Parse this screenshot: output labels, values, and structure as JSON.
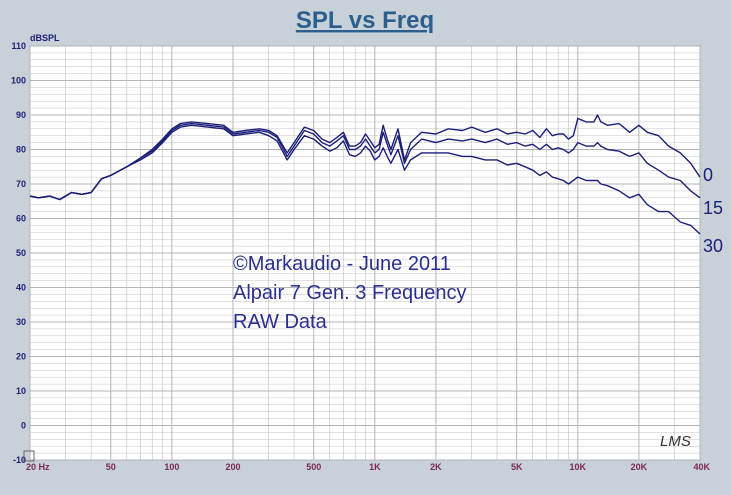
{
  "chart_data": {
    "type": "line",
    "title": "SPL vs Freq",
    "ylabel": "dBSPL",
    "xlabel": "",
    "x_scale": "log",
    "xlim": [
      20,
      40000
    ],
    "ylim": [
      -10,
      110
    ],
    "grid": true,
    "y_ticks": [
      "110",
      "100",
      "90",
      "80",
      "70",
      "60",
      "50",
      "40",
      "30",
      "20",
      "10",
      "0",
      "-10"
    ],
    "x_ticks": [
      {
        "value": 20,
        "label": "20 Hz"
      },
      {
        "value": 50,
        "label": "50"
      },
      {
        "value": 100,
        "label": "100"
      },
      {
        "value": 200,
        "label": "200"
      },
      {
        "value": 500,
        "label": "500"
      },
      {
        "value": 1000,
        "label": "1K"
      },
      {
        "value": 2000,
        "label": "2K"
      },
      {
        "value": 5000,
        "label": "5K"
      },
      {
        "value": 10000,
        "label": "10K"
      },
      {
        "value": 20000,
        "label": "20K"
      },
      {
        "value": 40000,
        "label": "40K"
      }
    ],
    "series": [
      {
        "name": "0",
        "x": [
          20,
          22,
          25,
          28,
          32,
          36,
          40,
          45,
          50,
          60,
          70,
          80,
          90,
          100,
          110,
          125,
          150,
          180,
          200,
          230,
          270,
          300,
          330,
          370,
          400,
          450,
          500,
          550,
          600,
          650,
          700,
          750,
          800,
          850,
          900,
          950,
          1000,
          1050,
          1100,
          1150,
          1200,
          1300,
          1400,
          1500,
          1700,
          2000,
          2300,
          2700,
          3000,
          3500,
          4000,
          4500,
          5000,
          5500,
          6000,
          6500,
          7000,
          7500,
          8000,
          8500,
          9000,
          9500,
          10000,
          11000,
          12000,
          12500,
          13000,
          14000,
          16000,
          18000,
          20000,
          22000,
          25000,
          28000,
          32000,
          36000,
          40000
        ],
        "y": [
          66.5,
          66,
          66.5,
          65.5,
          67.5,
          67,
          67.5,
          71.5,
          72.5,
          75,
          77.5,
          80,
          83,
          86,
          87.5,
          88,
          87.5,
          87,
          85,
          85.5,
          86,
          85.5,
          84,
          79,
          82,
          86.5,
          85.5,
          83,
          82,
          83.5,
          85,
          81,
          81,
          82,
          84.5,
          82.5,
          80.5,
          81.5,
          87,
          83,
          80,
          86,
          77,
          82,
          85,
          84.5,
          86,
          85.5,
          86.5,
          85,
          86,
          84.5,
          85,
          84.5,
          85.5,
          83.5,
          86,
          84,
          84.5,
          84.5,
          83,
          84,
          89,
          88,
          88,
          90,
          88,
          87,
          87.5,
          85,
          87,
          85,
          84,
          81,
          79,
          76,
          72
        ]
      },
      {
        "name": "15",
        "x": [
          20,
          22,
          25,
          28,
          32,
          36,
          40,
          45,
          50,
          60,
          70,
          80,
          90,
          100,
          110,
          125,
          150,
          180,
          200,
          230,
          270,
          300,
          330,
          370,
          400,
          450,
          500,
          550,
          600,
          650,
          700,
          750,
          800,
          850,
          900,
          950,
          1000,
          1050,
          1100,
          1150,
          1200,
          1300,
          1400,
          1500,
          1700,
          2000,
          2300,
          2700,
          3000,
          3500,
          4000,
          4500,
          5000,
          5500,
          6000,
          6500,
          7000,
          7500,
          8000,
          8500,
          9000,
          9500,
          10000,
          11000,
          12000,
          12500,
          13000,
          14000,
          16000,
          18000,
          20000,
          22000,
          25000,
          28000,
          32000,
          36000,
          40000
        ],
        "y": [
          66.5,
          66,
          66.5,
          65.5,
          67.5,
          67,
          67.5,
          71.5,
          72.5,
          75,
          77.5,
          79.5,
          82.5,
          85.5,
          87,
          87.5,
          87,
          86.5,
          84.5,
          85,
          85.5,
          85,
          83.5,
          78,
          81,
          85.5,
          84.5,
          82,
          81,
          82.5,
          84,
          80,
          80,
          81,
          83,
          81,
          79,
          80,
          85,
          81.5,
          78.5,
          84,
          76,
          80,
          83,
          82,
          83,
          82.5,
          83,
          82,
          83,
          81.5,
          82,
          81,
          81.5,
          80,
          81.5,
          80,
          80.5,
          80,
          79,
          80,
          82,
          81,
          81,
          82,
          81,
          80,
          79.5,
          78,
          79,
          76,
          74,
          72,
          71,
          68,
          66
        ]
      },
      {
        "name": "30",
        "x": [
          20,
          22,
          25,
          28,
          32,
          36,
          40,
          45,
          50,
          60,
          70,
          80,
          90,
          100,
          110,
          125,
          150,
          180,
          200,
          230,
          270,
          300,
          330,
          370,
          400,
          450,
          500,
          550,
          600,
          650,
          700,
          750,
          800,
          850,
          900,
          950,
          1000,
          1050,
          1100,
          1150,
          1200,
          1300,
          1400,
          1500,
          1700,
          2000,
          2300,
          2700,
          3000,
          3500,
          4000,
          4500,
          5000,
          5500,
          6000,
          6500,
          7000,
          7500,
          8000,
          8500,
          9000,
          9500,
          10000,
          11000,
          12000,
          12500,
          13000,
          14000,
          16000,
          18000,
          20000,
          22000,
          25000,
          28000,
          32000,
          36000,
          40000
        ],
        "y": [
          66.5,
          66,
          66.5,
          65.5,
          67.5,
          67,
          67.5,
          71.5,
          72.5,
          75,
          77,
          79,
          82,
          85,
          86.5,
          87,
          86.5,
          86,
          84,
          84.5,
          85,
          84,
          82.5,
          77,
          80,
          84,
          83,
          81,
          79.5,
          80.5,
          82.5,
          78.5,
          78,
          79,
          81,
          79.5,
          77,
          78,
          80.5,
          78,
          76,
          80,
          74,
          77,
          79,
          79,
          79,
          78,
          78,
          77,
          77,
          75.5,
          76,
          75,
          74,
          72.5,
          73.5,
          72,
          71.5,
          71,
          70,
          71,
          72,
          71,
          71,
          71,
          70,
          69.5,
          68,
          66,
          67,
          64,
          62,
          62,
          59,
          58,
          55.5
        ]
      }
    ],
    "annotations": [
      "©Markaudio - June 2011",
      "Alpair 7 Gen. 3 Frequency",
      "RAW Data"
    ],
    "watermark": "LMS",
    "colors": {
      "series": "#1c1f78",
      "annotation": "#2a2f8f",
      "title": "#2a5f8f",
      "tick": "#7a2a50",
      "ytick": "#1c1f78",
      "plot_bg": "#ffffff",
      "page_bg": "#c8d0d8",
      "grid": "#b4b4b4"
    }
  }
}
